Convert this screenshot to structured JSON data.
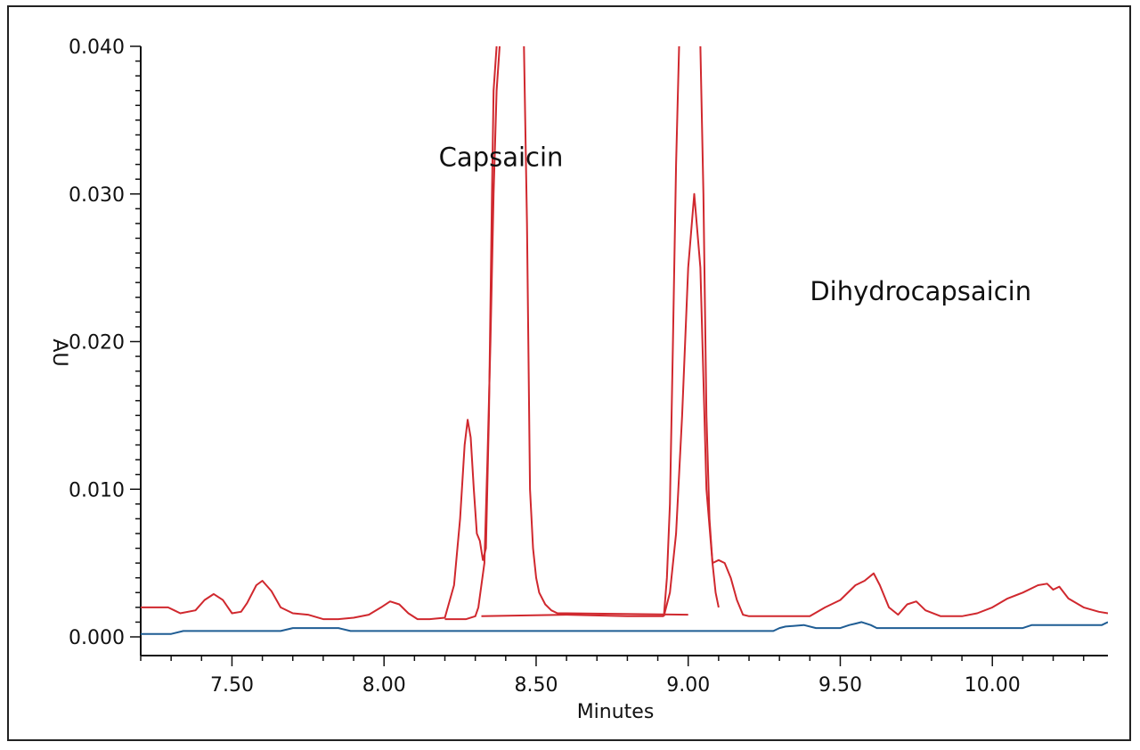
{
  "chart_data": {
    "type": "line",
    "title": "",
    "xlabel": "Minutes",
    "ylabel": "AU",
    "xlim": [
      7.2,
      10.38
    ],
    "ylim": [
      0.0,
      0.04
    ],
    "grid": false,
    "x_ticks": [
      7.5,
      8.0,
      8.5,
      9.0,
      9.5,
      10.0
    ],
    "x_tick_labels": [
      "7.50",
      "8.00",
      "8.50",
      "9.00",
      "9.50",
      "10.00"
    ],
    "y_ticks": [
      0.0,
      0.01,
      0.02,
      0.03,
      0.04
    ],
    "y_tick_labels": [
      "0.000",
      "0.010",
      "0.020",
      "0.030",
      "0.040"
    ],
    "annotations": [
      {
        "text": "Capsaicin",
        "x": 8.18,
        "y": 0.0319
      },
      {
        "text": "Dihydrocapsaicin",
        "x": 9.4,
        "y": 0.0228
      }
    ],
    "series": [
      {
        "color": "#d0282e",
        "x": [
          7.2,
          7.29,
          7.31,
          7.33,
          7.38,
          7.41,
          7.44,
          7.47,
          7.5,
          7.53,
          7.55,
          7.58,
          7.6,
          7.63,
          7.66,
          7.7,
          7.75,
          7.8,
          7.85,
          7.9,
          7.95,
          7.99,
          8.02,
          8.05,
          8.08,
          8.11,
          8.15,
          8.2,
          8.23,
          8.25,
          8.265,
          8.275,
          8.285,
          8.295,
          8.305,
          8.315,
          8.325,
          8.335,
          8.345,
          8.355,
          8.36,
          8.37
        ],
        "y": [
          0.002,
          0.002,
          0.0018,
          0.0016,
          0.0018,
          0.0025,
          0.0029,
          0.0025,
          0.0016,
          0.0017,
          0.0023,
          0.0035,
          0.0038,
          0.0031,
          0.002,
          0.0016,
          0.0015,
          0.0012,
          0.0012,
          0.0013,
          0.0015,
          0.002,
          0.0024,
          0.0022,
          0.0016,
          0.0012,
          0.0012,
          0.0013,
          0.0035,
          0.008,
          0.013,
          0.0147,
          0.0135,
          0.01,
          0.007,
          0.0065,
          0.0052,
          0.006,
          0.015,
          0.03,
          0.037,
          0.04
        ]
      },
      {
        "color": "#d0282e",
        "x": [
          8.46,
          8.47,
          8.48,
          8.49,
          8.5,
          8.51,
          8.53,
          8.55,
          8.57,
          8.6,
          9.0
        ],
        "y": [
          0.04,
          0.028,
          0.01,
          0.006,
          0.004,
          0.003,
          0.0022,
          0.0018,
          0.0016,
          0.0016,
          0.0015
        ]
      },
      {
        "color": "#d0282e",
        "x": [
          8.2,
          8.27,
          8.3,
          8.31,
          8.33,
          8.34,
          8.35,
          8.36,
          8.37,
          8.38
        ],
        "y": [
          0.0012,
          0.0012,
          0.0014,
          0.002,
          0.005,
          0.012,
          0.02,
          0.03,
          0.037,
          0.04
        ]
      },
      {
        "color": "#d0282e",
        "x": [
          8.32,
          8.6,
          8.8,
          8.92
        ],
        "y": [
          0.0014,
          0.0015,
          0.0014,
          0.0014
        ]
      },
      {
        "color": "#d0282e",
        "x": [
          8.92,
          8.93,
          8.94,
          8.95,
          8.96,
          8.97
        ],
        "y": [
          0.0014,
          0.004,
          0.009,
          0.02,
          0.032,
          0.04
        ]
      },
      {
        "color": "#d0282e",
        "x": [
          9.04,
          9.05,
          9.06,
          9.07,
          9.08,
          9.09,
          9.1
        ],
        "y": [
          0.04,
          0.03,
          0.015,
          0.008,
          0.005,
          0.003,
          0.002
        ]
      },
      {
        "color": "#d0282e",
        "x": [
          8.92,
          8.94,
          8.96,
          8.98,
          9.0,
          9.02,
          9.04,
          9.06,
          9.08,
          9.1,
          9.12,
          9.14,
          9.16,
          9.18,
          9.2,
          9.3,
          9.4,
          9.45,
          9.5,
          9.55,
          9.58,
          9.61,
          9.63,
          9.66,
          9.69,
          9.72,
          9.75,
          9.78,
          9.83,
          9.9,
          9.95,
          10.0,
          10.05,
          10.1,
          10.15,
          10.18,
          10.2,
          10.22,
          10.25,
          10.3,
          10.35,
          10.38
        ],
        "y": [
          0.0014,
          0.003,
          0.007,
          0.015,
          0.025,
          0.03,
          0.025,
          0.01,
          0.005,
          0.0052,
          0.005,
          0.004,
          0.0025,
          0.0015,
          0.0014,
          0.0014,
          0.0014,
          0.002,
          0.0025,
          0.0035,
          0.0038,
          0.0043,
          0.0035,
          0.002,
          0.0015,
          0.0022,
          0.0024,
          0.0018,
          0.0014,
          0.0014,
          0.0016,
          0.002,
          0.0026,
          0.003,
          0.0035,
          0.0036,
          0.0032,
          0.0034,
          0.0026,
          0.002,
          0.0017,
          0.0016
        ]
      },
      {
        "color": "#1f5d94",
        "x": [
          7.2,
          7.3,
          7.34,
          7.5,
          7.66,
          7.7,
          7.85,
          7.89,
          8.0,
          8.5,
          9.0,
          9.28,
          9.3,
          9.32,
          9.38,
          9.42,
          9.45,
          9.5,
          9.53,
          9.55,
          9.57,
          9.6,
          9.62,
          9.65,
          9.7,
          9.8,
          9.9,
          10.0,
          10.1,
          10.13,
          10.2,
          10.3,
          10.36,
          10.38
        ],
        "y": [
          0.0002,
          0.0002,
          0.0004,
          0.0004,
          0.0004,
          0.0006,
          0.0006,
          0.0004,
          0.0004,
          0.0004,
          0.0004,
          0.0004,
          0.0006,
          0.0007,
          0.0008,
          0.0006,
          0.0006,
          0.0006,
          0.0008,
          0.0009,
          0.001,
          0.0008,
          0.0006,
          0.0006,
          0.0006,
          0.0006,
          0.0006,
          0.0006,
          0.0006,
          0.0008,
          0.0008,
          0.0008,
          0.0008,
          0.001
        ]
      }
    ]
  }
}
